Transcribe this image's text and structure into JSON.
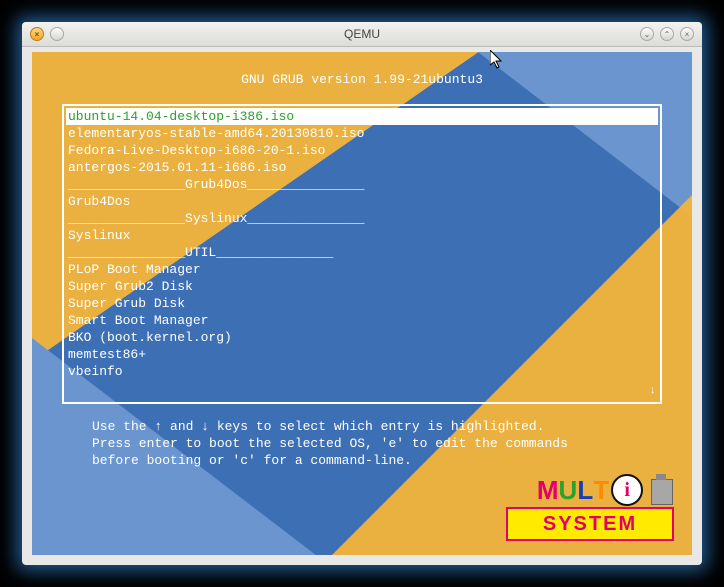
{
  "window": {
    "title": "QEMU"
  },
  "grub": {
    "header": "GNU GRUB  version 1.99-21ubuntu3",
    "entries": [
      {
        "label": "ubuntu-14.04-desktop-i386.iso",
        "selected": true
      },
      {
        "label": "elementaryos-stable-amd64.20130810.iso",
        "selected": false
      },
      {
        "label": "Fedora-Live-Desktop-i686-20-1.iso",
        "selected": false
      },
      {
        "label": "antergos-2015.01.11-i686.iso",
        "selected": false
      },
      {
        "label": "_______________Grub4Dos_______________",
        "selected": false
      },
      {
        "label": "Grub4Dos",
        "selected": false
      },
      {
        "label": "_______________Syslinux_______________",
        "selected": false
      },
      {
        "label": "Syslinux",
        "selected": false
      },
      {
        "label": "_______________UTIL_______________",
        "selected": false
      },
      {
        "label": "PLoP Boot Manager",
        "selected": false
      },
      {
        "label": "Super Grub2 Disk",
        "selected": false
      },
      {
        "label": "Super Grub Disk",
        "selected": false
      },
      {
        "label": "Smart Boot Manager",
        "selected": false
      },
      {
        "label": "BKO (boot.kernel.org)",
        "selected": false
      },
      {
        "label": "memtest86+",
        "selected": false
      },
      {
        "label": "vbeinfo",
        "selected": false
      }
    ],
    "scroll_indicator": "↓",
    "help_line1": "Use the ↑ and ↓ keys to select which entry is highlighted.",
    "help_line2": "Press enter to boot the selected OS, 'e' to edit the commands",
    "help_line3": "before booting or 'c' for a command-line."
  },
  "logo": {
    "letters": [
      {
        "t": "M",
        "c": "#e2006a"
      },
      {
        "t": "U",
        "c": "#2aa12a"
      },
      {
        "t": "L",
        "c": "#1a3fb5"
      },
      {
        "t": "T",
        "c": "#ff8a00"
      }
    ],
    "i_outer": "#ffffff",
    "i_inner": "#e2006a",
    "bottom_text": "SYSTEM",
    "bottom_text_color": "#e2006a",
    "bottom_bg": "#ffea00",
    "bottom_border": "#e2006a"
  },
  "colors": {
    "bg_blue": "#3d6fb5",
    "bg_blue_light": "#6b95ce",
    "bg_orange": "#f3b43a",
    "menu_text": "#ffffff",
    "selected_bg": "#ffffff",
    "selected_fg": "#2aa12a"
  }
}
